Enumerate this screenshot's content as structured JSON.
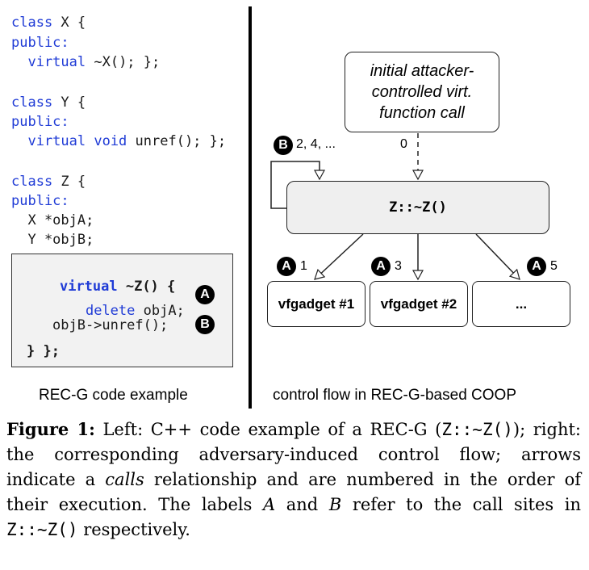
{
  "code": {
    "lines": [
      {
        "parts": [
          {
            "t": "class",
            "kw": true
          },
          {
            "t": " X {"
          }
        ]
      },
      {
        "parts": [
          {
            "t": "public:",
            "kw": true
          }
        ]
      },
      {
        "parts": [
          {
            "t": "  virtual",
            "kw": true
          },
          {
            "t": " ~X(); };"
          }
        ]
      },
      {
        "parts": [
          {
            "t": ""
          }
        ]
      },
      {
        "parts": [
          {
            "t": "class",
            "kw": true
          },
          {
            "t": " Y {"
          }
        ]
      },
      {
        "parts": [
          {
            "t": "public:",
            "kw": true
          }
        ]
      },
      {
        "parts": [
          {
            "t": "  virtual void",
            "kw": true
          },
          {
            "t": " unref(); };"
          }
        ]
      },
      {
        "parts": [
          {
            "t": ""
          }
        ]
      },
      {
        "parts": [
          {
            "t": "class",
            "kw": true
          },
          {
            "t": " Z {"
          }
        ]
      },
      {
        "parts": [
          {
            "t": "public:",
            "kw": true
          }
        ]
      },
      {
        "parts": [
          {
            "t": "  X *objA;"
          }
        ]
      },
      {
        "parts": [
          {
            "t": "  Y *objB;"
          }
        ]
      }
    ],
    "box": {
      "line1_kw": "virtual",
      "line1_rest": " ~Z() {",
      "line2_kw": "delete",
      "line2_rest": " objA;",
      "line3": "objB->unref();",
      "line4": "} };",
      "badge_a": "A",
      "badge_b": "B"
    }
  },
  "captions": {
    "left": "REC-G code example",
    "right": "control flow in REC-G-based COOP"
  },
  "diagram": {
    "init_node": [
      "initial attacker-",
      "controlled virt.",
      "function call"
    ],
    "z_node": "Z::~Z()",
    "gadgets": [
      "vfgadget #1",
      "vfgadget #2",
      "..."
    ],
    "label_b_badge": "B",
    "label_b_text": "2, 4, ...",
    "label_zero": "0",
    "edge_labels": [
      {
        "badge": "A",
        "num": "1"
      },
      {
        "badge": "A",
        "num": "3"
      },
      {
        "badge": "A",
        "num": "5"
      }
    ]
  },
  "figure_caption": {
    "label": "Figure 1:",
    "text_html": "Left: C++ code example of a REC-G (<span class=\"mono\">Z::~Z()</span>); right: the corresponding adversary-induced control flow; arrows indicate a <i>calls</i> relationship and are numbered in the order of their execution. The labels <i>A</i> and <i>B</i> refer to the call sites in <span class=\"mono\">Z::~Z()</span> respectively."
  }
}
